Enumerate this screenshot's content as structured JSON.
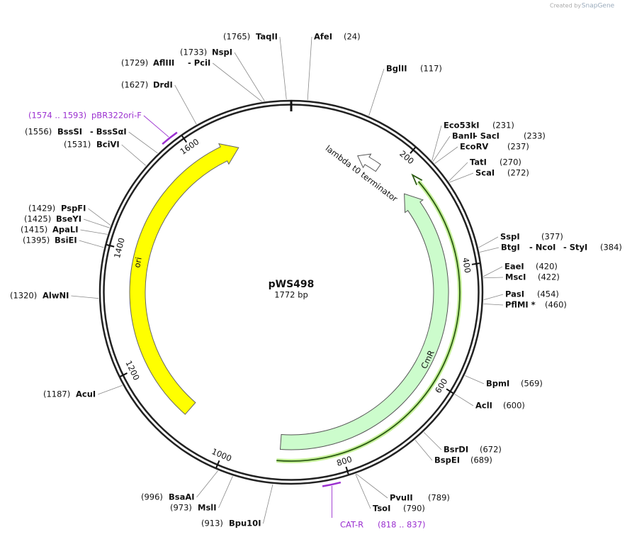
{
  "watermark": {
    "prefix": "Created by",
    "brand": "SnapGene"
  },
  "plasmid": {
    "name": "pWS498",
    "size": "1772 bp"
  },
  "ticks": [
    200,
    400,
    600,
    800,
    1000,
    1200,
    1400,
    1600
  ],
  "features": [
    {
      "label": "ori"
    },
    {
      "label": "CmR"
    },
    {
      "label": "lambda t0 terminator"
    }
  ],
  "primers": [
    {
      "name": "pBR322ori-F",
      "range": "(1574 .. 1593)"
    },
    {
      "name": "CAT-R",
      "range": "(818 .. 837)"
    }
  ],
  "sites": [
    {
      "names": [
        "TaqII"
      ],
      "position": "(1765)"
    },
    {
      "names": [
        "AfeI"
      ],
      "position": "(24)"
    },
    {
      "names": [
        "BglII"
      ],
      "position": "(117)"
    },
    {
      "names": [
        "NspI"
      ],
      "position": "(1733)"
    },
    {
      "names": [
        "AflIII",
        "- PciI"
      ],
      "position": "(1729)"
    },
    {
      "names": [
        "DrdI"
      ],
      "position": "(1627)"
    },
    {
      "names": [
        "BssSI",
        "- BssSαI"
      ],
      "position": "(1556)"
    },
    {
      "names": [
        "BciVI"
      ],
      "position": "(1531)"
    },
    {
      "names": [
        "PspFI"
      ],
      "position": "(1429)"
    },
    {
      "names": [
        "BseYI"
      ],
      "position": "(1425)"
    },
    {
      "names": [
        "ApaLI"
      ],
      "position": "(1415)"
    },
    {
      "names": [
        "BsiEI"
      ],
      "position": "(1395)"
    },
    {
      "names": [
        "AlwNI"
      ],
      "position": "(1320)"
    },
    {
      "names": [
        "AcuI"
      ],
      "position": "(1187)"
    },
    {
      "names": [
        "BsaAI"
      ],
      "position": "(996)"
    },
    {
      "names": [
        "MslI"
      ],
      "position": "(973)"
    },
    {
      "names": [
        "Bpu10I"
      ],
      "position": "(913)"
    },
    {
      "names": [
        "Eco53kI"
      ],
      "position": "(231)"
    },
    {
      "names": [
        "BanII",
        "- SacI"
      ],
      "position": "(233)"
    },
    {
      "names": [
        "EcoRV"
      ],
      "position": "(237)"
    },
    {
      "names": [
        "TatI"
      ],
      "position": "(270)"
    },
    {
      "names": [
        "ScaI"
      ],
      "position": "(272)"
    },
    {
      "names": [
        "SspI"
      ],
      "position": "(377)"
    },
    {
      "names": [
        "BtgI",
        "- NcoI",
        "- StyI"
      ],
      "position": "(384)"
    },
    {
      "names": [
        "EaeI"
      ],
      "position": "(420)"
    },
    {
      "names": [
        "MscI"
      ],
      "position": "(422)"
    },
    {
      "names": [
        "PasI"
      ],
      "position": "(454)"
    },
    {
      "names": [
        "PflMI *"
      ],
      "position": "(460)"
    },
    {
      "names": [
        "BpmI"
      ],
      "position": "(569)"
    },
    {
      "names": [
        "AclI"
      ],
      "position": "(600)"
    },
    {
      "names": [
        "BsrDI"
      ],
      "position": "(672)"
    },
    {
      "names": [
        "BspEI"
      ],
      "position": "(689)"
    },
    {
      "names": [
        "PvuII"
      ],
      "position": "(789)"
    },
    {
      "names": [
        "TsoI"
      ],
      "position": "(790)"
    }
  ]
}
